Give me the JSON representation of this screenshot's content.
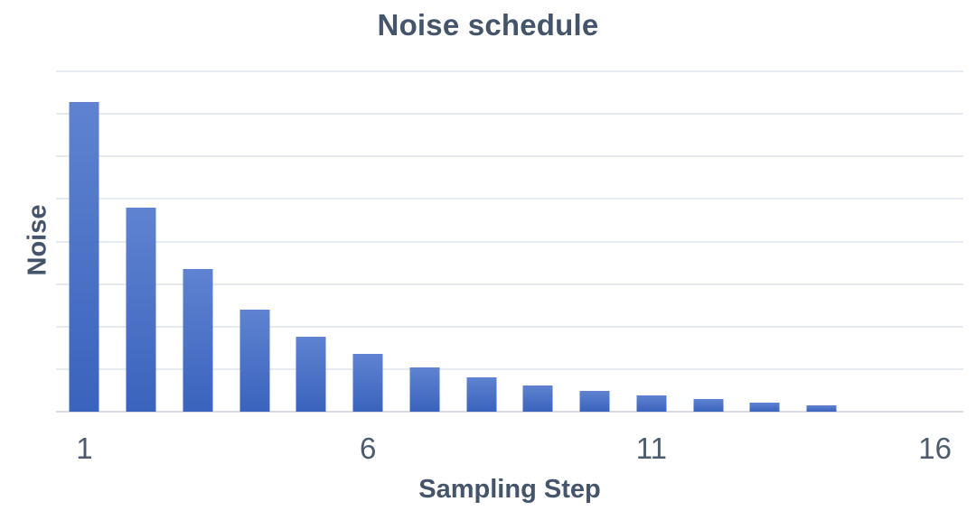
{
  "chart_data": {
    "type": "bar",
    "title": "Noise schedule",
    "xlabel": "Sampling Step",
    "ylabel": "Noise",
    "categories": [
      1,
      2,
      3,
      4,
      5,
      6,
      7,
      8,
      9,
      10,
      11,
      12,
      13,
      14,
      15,
      16
    ],
    "values": [
      0.91,
      0.6,
      0.42,
      0.3,
      0.22,
      0.17,
      0.13,
      0.1,
      0.078,
      0.062,
      0.047,
      0.038,
      0.027,
      0.018,
      0,
      0
    ],
    "x_tick_labels": [
      "1",
      "6",
      "11",
      "16"
    ],
    "x_tick_positions": [
      1,
      6,
      11,
      16
    ],
    "y_tick_labels": [],
    "ylim": [
      0,
      1.0
    ],
    "gridline_interval": 0.125,
    "grid": "horizontal-only",
    "legend": "none",
    "colors": {
      "bar_gradient_top": "#5f83d1",
      "bar_gradient_bottom": "#3a63bd",
      "title_text": "#44546a",
      "axis_label_text": "#44546a",
      "tick_label_text": "#4d5b6d",
      "gridline": "#e6eaf1",
      "baseline": "#d8dde5",
      "background": "#ffffff"
    }
  }
}
